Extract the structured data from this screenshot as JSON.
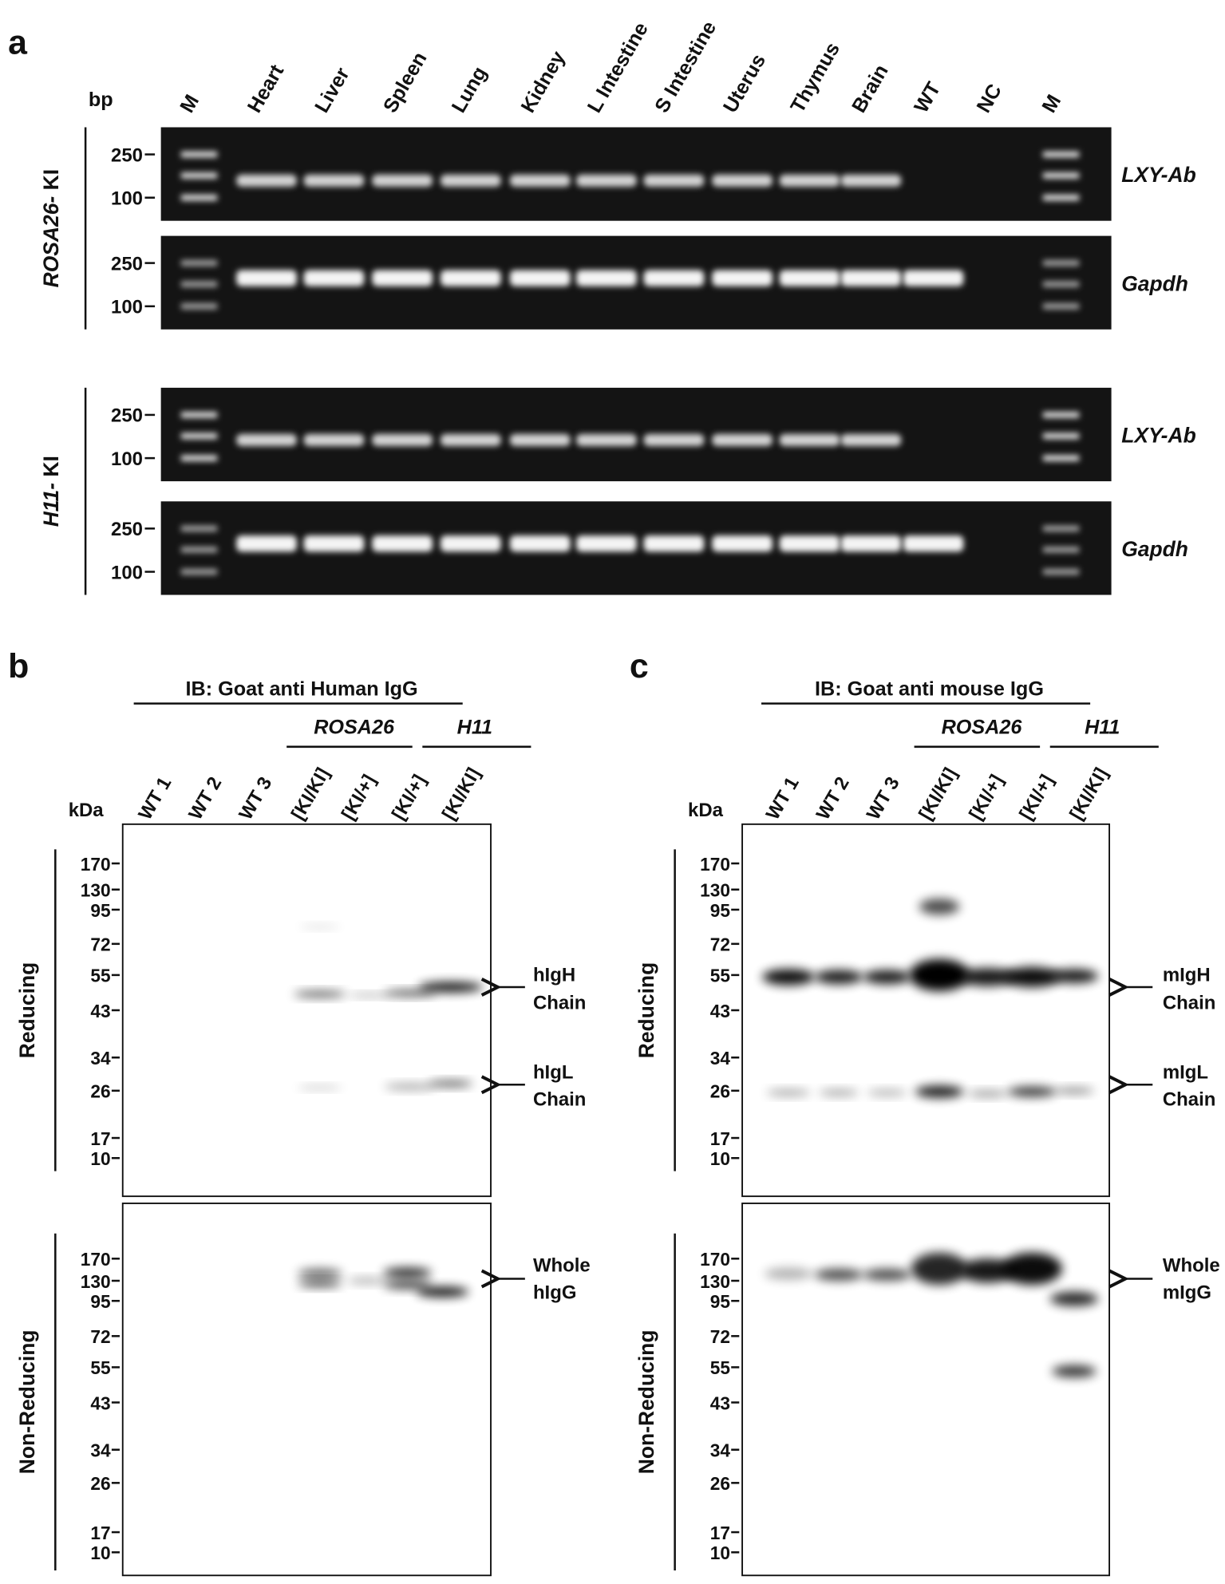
{
  "panel_a": {
    "letter": "a",
    "unit": "bp",
    "lanes": [
      "M",
      "Heart",
      "Liver",
      "Spleen",
      "Lung",
      "Kidney",
      "L Intestine",
      "S Intestine",
      "Uterus",
      "Thymus",
      "Brain",
      "WT",
      "NC",
      "M"
    ],
    "groups": [
      {
        "name": "ROSA26-",
        "suffix": "KI",
        "gels": [
          {
            "markers": [
              250,
              100
            ],
            "gene": "LXY-Ab"
          },
          {
            "markers": [
              250,
              100
            ],
            "gene": "Gapdh"
          }
        ]
      },
      {
        "name": "H11-",
        "suffix": "KI",
        "gels": [
          {
            "markers": [
              250,
              100
            ],
            "gene": "LXY-Ab"
          },
          {
            "markers": [
              250,
              100
            ],
            "gene": "Gapdh"
          }
        ]
      }
    ]
  },
  "panel_b": {
    "letter": "b",
    "antibody": "IB: Goat anti Human IgG",
    "unit": "kDa",
    "strains": [
      "ROSA26",
      "H11"
    ],
    "lanes": [
      "WT 1",
      "WT 2",
      "WT 3",
      "[KI/KI]",
      "[KI/+]",
      "[KI/+]",
      "[KI/KI]"
    ],
    "conditions": [
      {
        "name": "Reducing",
        "markers": [
          170,
          130,
          95,
          72,
          55,
          43,
          34,
          26,
          17,
          10
        ]
      },
      {
        "name": "Non-Reducing",
        "markers": [
          170,
          130,
          95,
          72,
          55,
          43,
          34,
          26,
          17,
          10
        ]
      }
    ],
    "annotations": [
      [
        "hIgH",
        "Chain"
      ],
      [
        "hIgL",
        "Chain"
      ],
      [
        "Whole",
        "hIgG"
      ]
    ]
  },
  "panel_c": {
    "letter": "c",
    "antibody": "IB: Goat anti mouse IgG",
    "unit": "kDa",
    "strains": [
      "ROSA26",
      "H11"
    ],
    "lanes": [
      "WT 1",
      "WT 2",
      "WT 3",
      "[KI/KI]",
      "[KI/+]",
      "[KI/+]",
      "[KI/KI]"
    ],
    "conditions": [
      {
        "name": "Reducing",
        "markers": [
          170,
          130,
          95,
          72,
          55,
          43,
          34,
          26,
          17,
          10
        ]
      },
      {
        "name": "Non-Reducing",
        "markers": [
          170,
          130,
          95,
          72,
          55,
          43,
          34,
          26,
          17,
          10
        ]
      }
    ],
    "annotations": [
      [
        "mIgH",
        "Chain"
      ],
      [
        "mIgL",
        "Chain"
      ],
      [
        "Whole",
        "mIgG"
      ]
    ]
  }
}
